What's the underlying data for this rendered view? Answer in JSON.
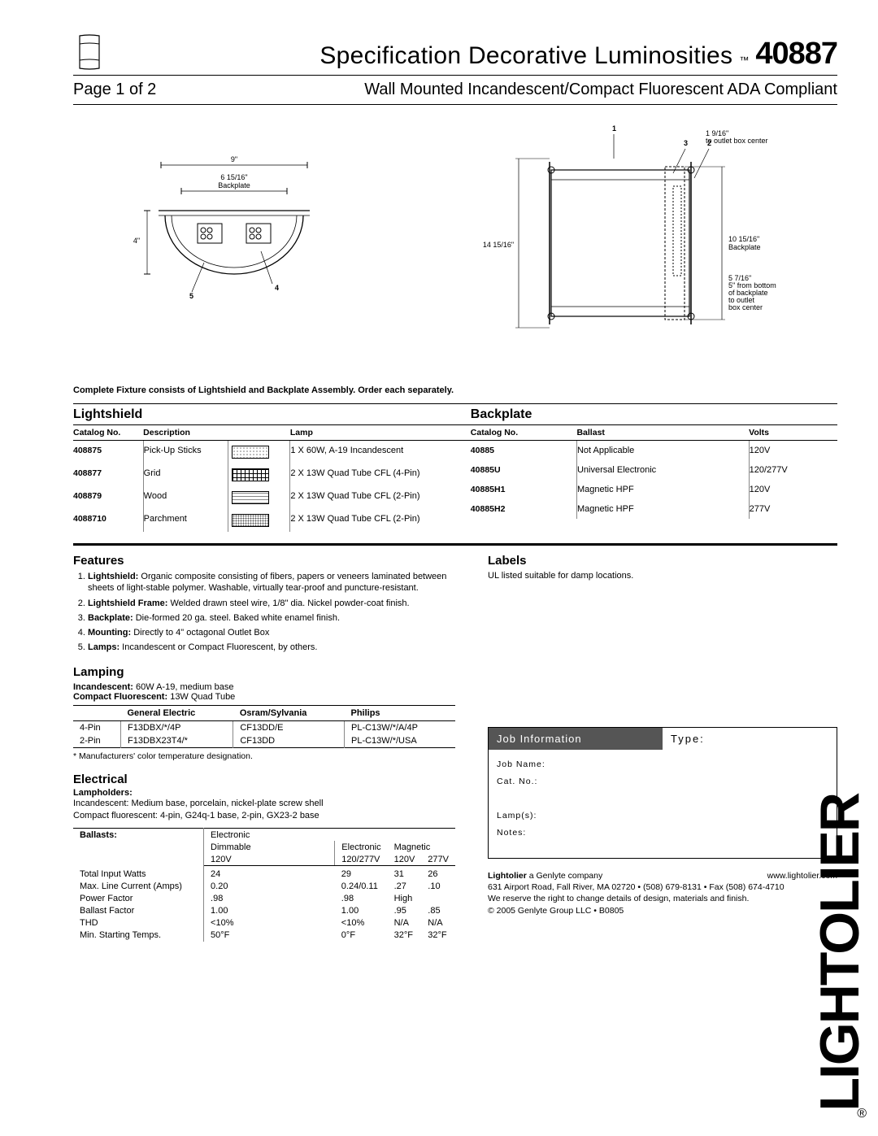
{
  "header": {
    "title_pre": "Specification Decorative Luminosities",
    "tm": "™",
    "model": "40887",
    "page": "Page 1 of 2",
    "subtitle": "Wall Mounted Incandescent/Compact Fluorescent ADA Compliant"
  },
  "diagram": {
    "top_9": "9\"",
    "top_bp": "6 15/16\"",
    "top_bp_label": "Backplate",
    "left_4": "4\"",
    "n1": "1",
    "n2": "2",
    "n3": "3",
    "n4": "4",
    "n5": "5",
    "r_1": "1 9/16\"",
    "r_1b": "to outlet box center",
    "h_label": "14 15/16\"",
    "r_bp": "10 15/16\"",
    "r_bp2": "Backplate",
    "r_bot": "5 7/16\"",
    "r_bot2": "5\" from bottom",
    "r_bot3": "of backplate",
    "r_bot4": "to outlet",
    "r_bot5": "box center"
  },
  "note": "Complete Fixture consists of Lightshield and Backplate Assembly. Order each separately.",
  "tables": {
    "lightshield": {
      "title": "Lightshield",
      "headers": [
        "Catalog No.",
        "Description",
        "",
        "Lamp"
      ],
      "rows": [
        {
          "cat": "408875",
          "desc": "Pick-Up Sticks",
          "sw": "sw-dots",
          "lamp": "1 X 60W, A-19 Incandescent"
        },
        {
          "cat": "408877",
          "desc": "Grid",
          "sw": "sw-grid",
          "lamp": "2 X 13W Quad Tube CFL (4-Pin)"
        },
        {
          "cat": "408879",
          "desc": "Wood",
          "sw": "sw-wood",
          "lamp": "2 X 13W Quad Tube CFL (2-Pin)"
        },
        {
          "cat": "4088710",
          "desc": "Parchment",
          "sw": "sw-parch",
          "lamp": "2 X 13W Quad Tube CFL (2-Pin)"
        }
      ]
    },
    "backplate": {
      "title": "Backplate",
      "headers": [
        "Catalog No.",
        "Ballast",
        "Volts"
      ],
      "rows": [
        {
          "cat": "40885",
          "ball": "Not Applicable",
          "v": "120V"
        },
        {
          "cat": "40885U",
          "ball": "Universal Electronic",
          "v": "120/277V"
        },
        {
          "cat": "40885H1",
          "ball": "Magnetic HPF",
          "v": "120V"
        },
        {
          "cat": "40885H2",
          "ball": "Magnetic HPF",
          "v": "277V"
        }
      ]
    }
  },
  "features": {
    "title": "Features",
    "items": [
      {
        "b": "Lightshield:",
        "t": " Organic composite consisting of fibers, papers or veneers laminated between sheets of light-stable polymer. Washable, virtually tear-proof and puncture-resistant."
      },
      {
        "b": "Lightshield Frame:",
        "t": " Welded drawn steel wire, 1/8\" dia. Nickel powder-coat finish."
      },
      {
        "b": "Backplate:",
        "t": " Die-formed 20 ga. steel. Baked white enamel finish."
      },
      {
        "b": "Mounting:",
        "t": " Directly to 4\" octagonal Outlet Box"
      },
      {
        "b": "Lamps:",
        "t": " Incandescent or Compact Fluorescent, by others."
      }
    ]
  },
  "lamping": {
    "title": "Lamping",
    "inc": "Incandescent:",
    "inc_t": " 60W A-19, medium base",
    "cf": "Compact Fluorescent:",
    "cf_t": " 13W Quad Tube",
    "headers": [
      "",
      "General Electric",
      "Osram/Sylvania",
      "Philips"
    ],
    "rows": [
      [
        "4-Pin",
        "F13DBX/*/4P",
        "CF13DD/E",
        "PL-C13W/*/A/4P"
      ],
      [
        "2-Pin",
        "F13DBX23T4/*",
        "CF13DD",
        "PL-C13W/*/USA"
      ]
    ],
    "note": "* Manufacturers' color temperature designation."
  },
  "electrical": {
    "title": "Electrical",
    "lampholders_h": "Lampholders:",
    "lampholders_1": "Incandescent: Medium base, porcelain, nickel-plate screw shell",
    "lampholders_2": "Compact fluorescent: 4-pin, G24q-1 base, 2-pin, GX23-2 base",
    "ballasts_h": "Ballasts:",
    "col_h": {
      "c1": "Electronic",
      "c1b": "Dimmable",
      "c1c": "120V",
      "c2": "Electronic",
      "c2b": "120/277V",
      "c3": "Magnetic",
      "c3b": "120V",
      "c4": "277V"
    },
    "rows": [
      {
        "l": "Total Input Watts",
        "v": [
          "24",
          "29",
          "31",
          "26"
        ]
      },
      {
        "l": "Max. Line Current (Amps)",
        "v": [
          "0.20",
          "0.24/0.11",
          ".27",
          ".10"
        ]
      },
      {
        "l": "Power Factor",
        "v": [
          ".98",
          ".98",
          "High",
          ""
        ]
      },
      {
        "l": "Ballast Factor",
        "v": [
          "1.00",
          "1.00",
          ".95",
          ".85"
        ]
      },
      {
        "l": "THD",
        "v": [
          "<10%",
          "<10%",
          "N/A",
          "N/A"
        ]
      },
      {
        "l": "Min. Starting Temps.",
        "v": [
          "50°F",
          "0°F",
          "32°F",
          "32°F"
        ]
      }
    ]
  },
  "labels": {
    "title": "Labels",
    "text": "UL listed suitable for damp locations."
  },
  "job": {
    "head_l": "Job Information",
    "head_r": "Type:",
    "f1": "Job Name:",
    "f2": "Cat. No.:",
    "f3": "Lamp(s):",
    "f4": "Notes:"
  },
  "footer": {
    "brand": "Lightolier",
    "brand_t": " a Genlyte company",
    "url": "www.lightolier.com",
    "addr": "631 Airport Road, Fall River, MA 02720 • (508) 679-8131 • Fax (508) 674-4710",
    "disc": "We reserve the right to change details of design, materials and finish.",
    "copy": "© 2005 Genlyte Group LLC • B0805"
  },
  "brand_vertical": "LIGHTOLIER",
  "reg": "®"
}
